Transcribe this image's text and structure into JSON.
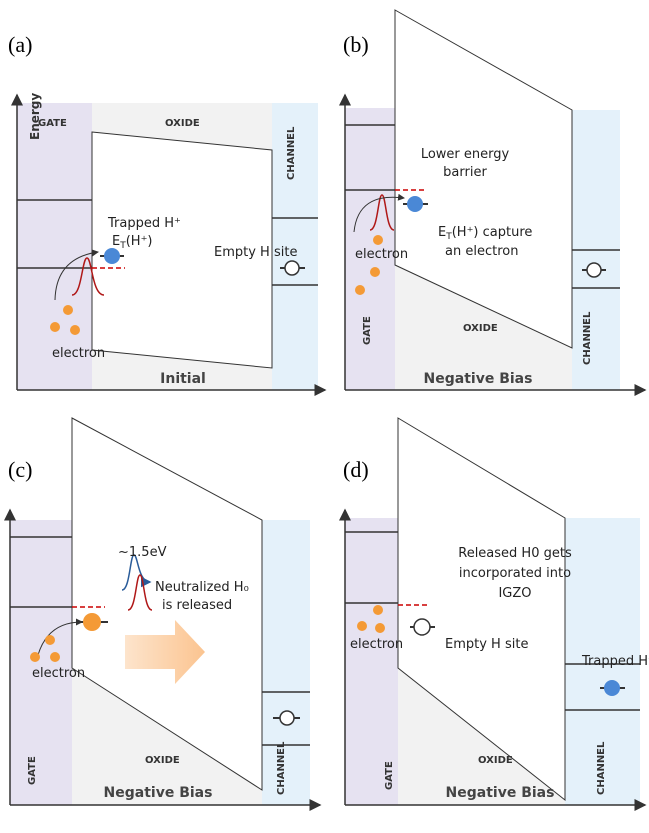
{
  "panels": [
    {
      "label": "(a)",
      "axis_label": "Energy",
      "gate": "GATE",
      "oxide": "OXIDE",
      "channel": "CHANNEL",
      "condition": "Initial",
      "trapped": "Trapped H⁺",
      "level": {
        "e": "E",
        "sub": "T",
        "rest": "(H⁺)"
      },
      "empty_site": "Empty H site",
      "electron": "electron"
    },
    {
      "label": "(b)",
      "gate": "GATE",
      "oxide": "OXIDE",
      "channel": "CHANNEL",
      "condition": "Negative Bias",
      "barrier": [
        "Lower energy",
        "barrier"
      ],
      "capture": {
        "e": "E",
        "sub": "T",
        "rest": "(H⁺) capture",
        "line2": "an electron"
      },
      "electron": "electron"
    },
    {
      "label": "(c)",
      "gate": "GATE",
      "oxide": "OXIDE",
      "channel": "CHANNEL",
      "condition": "Negative Bias",
      "energy": "~1.5eV",
      "released": [
        "Neutralized H₀",
        "is released"
      ],
      "electron": "electron"
    },
    {
      "label": "(d)",
      "gate": "GATE",
      "oxide": "OXIDE",
      "channel": "CHANNEL",
      "condition": "Negative Bias",
      "incorporated": [
        "Released H0 gets",
        "incorporated into",
        "IGZO"
      ],
      "empty_site": "Empty H site",
      "trapped": "Trapped H⁺",
      "electron": "electron"
    }
  ]
}
